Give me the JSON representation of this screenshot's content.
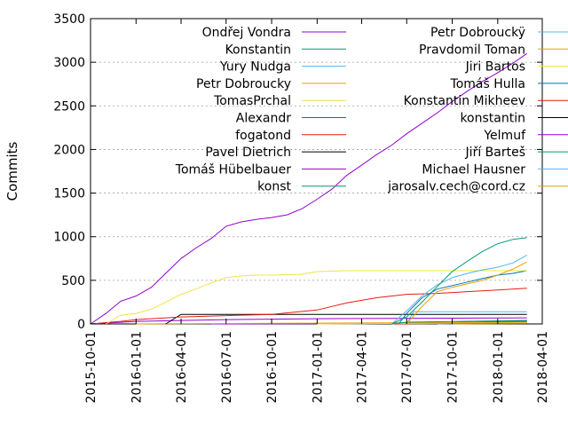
{
  "chart_data": {
    "type": "line",
    "title": "",
    "ylabel": "Commits",
    "xlabel": "",
    "ylim": [
      0,
      3500
    ],
    "xlim": [
      "2015-10-01",
      "2018-04-01"
    ],
    "y_ticks": [
      0,
      500,
      1000,
      1500,
      2000,
      2500,
      3000,
      3500
    ],
    "x_ticks": [
      "2015-10-01",
      "2016-01-01",
      "2016-04-01",
      "2016-07-01",
      "2016-10-01",
      "2017-01-01",
      "2017-04-01",
      "2017-07-01",
      "2017-10-01",
      "2018-01-01",
      "2018-04-01"
    ],
    "grid": "horizontal dashed",
    "legend_placement": "top (two columns)",
    "series": [
      {
        "name": "Ondřej Vondra",
        "color": "#9400d3",
        "points": [
          [
            "2015-10-01",
            0
          ],
          [
            "2015-11-01",
            120
          ],
          [
            "2015-12-01",
            260
          ],
          [
            "2016-01-01",
            320
          ],
          [
            "2016-02-01",
            420
          ],
          [
            "2016-03-01",
            580
          ],
          [
            "2016-04-01",
            750
          ],
          [
            "2016-05-01",
            870
          ],
          [
            "2016-06-01",
            980
          ],
          [
            "2016-07-01",
            1120
          ],
          [
            "2016-08-01",
            1170
          ],
          [
            "2016-09-01",
            1200
          ],
          [
            "2016-10-01",
            1220
          ],
          [
            "2016-11-01",
            1250
          ],
          [
            "2016-12-01",
            1320
          ],
          [
            "2017-01-01",
            1430
          ],
          [
            "2017-02-01",
            1550
          ],
          [
            "2017-03-01",
            1700
          ],
          [
            "2017-04-01",
            1820
          ],
          [
            "2017-05-01",
            1940
          ],
          [
            "2017-06-01",
            2050
          ],
          [
            "2017-07-01",
            2180
          ],
          [
            "2017-08-01",
            2300
          ],
          [
            "2017-09-01",
            2420
          ],
          [
            "2017-10-01",
            2550
          ],
          [
            "2017-11-01",
            2670
          ],
          [
            "2017-12-01",
            2780
          ],
          [
            "2018-01-01",
            2880
          ],
          [
            "2018-02-01",
            2990
          ],
          [
            "2018-03-01",
            3100
          ]
        ]
      },
      {
        "name": "Konstantin",
        "color": "#009e73",
        "points": [
          [
            "2017-06-01",
            0
          ],
          [
            "2017-07-01",
            80
          ],
          [
            "2017-08-01",
            250
          ],
          [
            "2017-09-01",
            430
          ],
          [
            "2017-10-01",
            600
          ],
          [
            "2017-11-01",
            720
          ],
          [
            "2017-12-01",
            830
          ],
          [
            "2018-01-01",
            920
          ],
          [
            "2018-02-01",
            970
          ],
          [
            "2018-03-01",
            990
          ]
        ]
      },
      {
        "name": "Yury Nudga",
        "color": "#56b4e9",
        "points": [
          [
            "2017-06-01",
            0
          ],
          [
            "2017-07-01",
            150
          ],
          [
            "2017-08-01",
            320
          ],
          [
            "2017-09-01",
            450
          ],
          [
            "2017-10-01",
            530
          ],
          [
            "2017-11-01",
            580
          ],
          [
            "2017-12-01",
            620
          ],
          [
            "2018-01-01",
            650
          ],
          [
            "2018-02-01",
            700
          ],
          [
            "2018-03-01",
            790
          ]
        ]
      },
      {
        "name": "Petr Dobroucky",
        "color": "#e69f00",
        "points": [
          [
            "2017-07-01",
            0
          ],
          [
            "2017-08-01",
            200
          ],
          [
            "2017-09-01",
            370
          ],
          [
            "2017-10-01",
            420
          ],
          [
            "2017-11-01",
            460
          ],
          [
            "2017-12-01",
            500
          ],
          [
            "2018-01-01",
            560
          ],
          [
            "2018-02-01",
            630
          ],
          [
            "2018-03-01",
            710
          ]
        ]
      },
      {
        "name": "TomasPrchal",
        "color": "#f0e442",
        "points": [
          [
            "2015-11-01",
            0
          ],
          [
            "2015-12-01",
            100
          ],
          [
            "2016-01-01",
            120
          ],
          [
            "2016-02-01",
            170
          ],
          [
            "2016-03-01",
            250
          ],
          [
            "2016-04-01",
            340
          ],
          [
            "2016-05-01",
            400
          ],
          [
            "2016-06-01",
            470
          ],
          [
            "2016-07-01",
            530
          ],
          [
            "2016-08-01",
            550
          ],
          [
            "2016-09-01",
            560
          ],
          [
            "2016-10-01",
            560
          ],
          [
            "2016-12-01",
            570
          ],
          [
            "2017-01-01",
            600
          ],
          [
            "2017-03-01",
            610
          ],
          [
            "2018-03-01",
            610
          ]
        ]
      },
      {
        "name": "Alexandr",
        "color": "#0072b2",
        "points": [
          [
            "2017-06-15",
            0
          ],
          [
            "2017-07-01",
            120
          ],
          [
            "2017-08-01",
            300
          ],
          [
            "2017-09-01",
            400
          ],
          [
            "2017-10-01",
            440
          ],
          [
            "2017-11-01",
            480
          ],
          [
            "2017-12-01",
            520
          ],
          [
            "2018-01-01",
            560
          ],
          [
            "2018-02-01",
            580
          ],
          [
            "2018-03-01",
            610
          ]
        ]
      },
      {
        "name": "fogatond",
        "color": "#e51e10",
        "points": [
          [
            "2015-10-01",
            0
          ],
          [
            "2015-12-01",
            30
          ],
          [
            "2016-01-01",
            50
          ],
          [
            "2016-04-01",
            80
          ],
          [
            "2016-10-01",
            110
          ],
          [
            "2017-01-01",
            160
          ],
          [
            "2017-03-01",
            240
          ],
          [
            "2017-05-01",
            300
          ],
          [
            "2017-07-01",
            340
          ],
          [
            "2017-09-01",
            350
          ],
          [
            "2017-11-01",
            370
          ],
          [
            "2018-01-01",
            390
          ],
          [
            "2018-03-01",
            410
          ]
        ]
      },
      {
        "name": "Pavel Dietrich",
        "color": "#000000",
        "points": [
          [
            "2016-03-01",
            0
          ],
          [
            "2016-04-01",
            110
          ],
          [
            "2018-03-01",
            110
          ]
        ]
      },
      {
        "name": "Tomáš Hübelbauer",
        "color": "#9400d3",
        "points": [
          [
            "2015-10-01",
            0
          ],
          [
            "2016-01-01",
            30
          ],
          [
            "2016-07-01",
            50
          ],
          [
            "2017-01-01",
            60
          ],
          [
            "2018-03-01",
            70
          ]
        ]
      },
      {
        "name": "konst",
        "color": "#009e73",
        "points": [
          [
            "2017-06-01",
            0
          ],
          [
            "2017-07-01",
            20
          ],
          [
            "2018-03-01",
            40
          ]
        ]
      },
      {
        "name": "Petr Dobrouckÿ",
        "color": "#56b4e9",
        "points": [
          [
            "2017-07-01",
            0
          ],
          [
            "2017-07-15",
            140
          ],
          [
            "2018-03-01",
            140
          ]
        ]
      },
      {
        "name": "Pravdomil Toman",
        "color": "#e69f00",
        "points": [
          [
            "2016-01-01",
            0
          ],
          [
            "2018-03-01",
            20
          ]
        ]
      },
      {
        "name": "Jiri Bartos",
        "color": "#f0e442",
        "points": [
          [
            "2017-01-01",
            0
          ],
          [
            "2018-03-01",
            15
          ]
        ]
      },
      {
        "name": "Tomáš Hulla",
        "color": "#0072b2",
        "points": [
          [
            "2017-03-01",
            0
          ],
          [
            "2018-03-01",
            30
          ]
        ]
      },
      {
        "name": "Konstantin Mikheev",
        "color": "#e51e10",
        "points": [
          [
            "2017-06-01",
            0
          ],
          [
            "2018-03-01",
            10
          ]
        ]
      },
      {
        "name": "konstantin",
        "color": "#000000",
        "points": [
          [
            "2017-07-01",
            0
          ],
          [
            "2018-03-01",
            40
          ]
        ]
      },
      {
        "name": "Yelmuf",
        "color": "#9400d3",
        "points": [
          [
            "2016-06-01",
            0
          ],
          [
            "2018-03-01",
            10
          ]
        ]
      },
      {
        "name": "Jiří Barteš",
        "color": "#009e73",
        "points": [
          [
            "2017-07-01",
            0
          ],
          [
            "2018-03-01",
            20
          ]
        ]
      },
      {
        "name": "Michael Hausner",
        "color": "#56b4e9",
        "points": [
          [
            "2017-09-01",
            0
          ],
          [
            "2018-03-01",
            15
          ]
        ]
      },
      {
        "name": "jarosalv.cech@cord.cz",
        "color": "#e69f00",
        "points": [
          [
            "2017-10-01",
            0
          ],
          [
            "2018-03-01",
            5
          ]
        ]
      }
    ]
  }
}
